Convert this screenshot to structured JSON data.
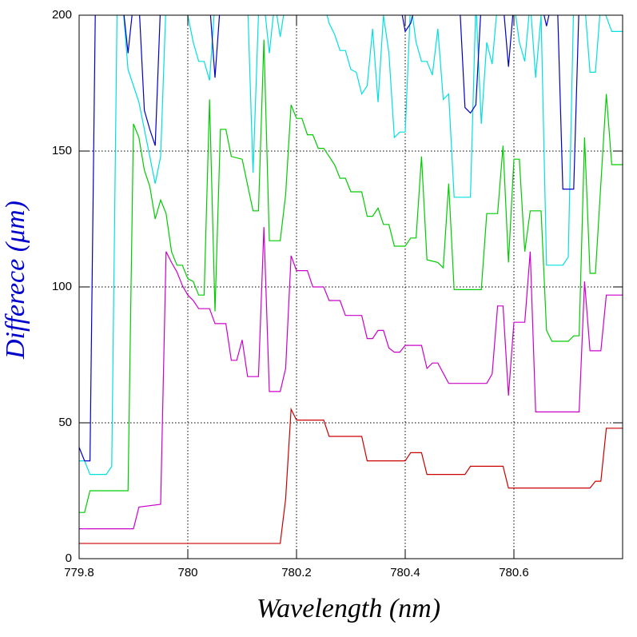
{
  "chart_data": {
    "type": "line",
    "xlabel": "Wavelength (nm)",
    "ylabel": "Differece (μm)",
    "xlim": [
      779.8,
      780.8
    ],
    "xticks": [
      779.8,
      780,
      780.2,
      780.4,
      780.6
    ],
    "ylim": [
      0,
      200
    ],
    "yticks": [
      0,
      50,
      100,
      150,
      200
    ],
    "grid": true,
    "series": [
      {
        "color": "#cc0000",
        "x": [
          779.8,
          780.17,
          780.18,
          780.19,
          780.2,
          780.25,
          780.26,
          780.32,
          780.33,
          780.4,
          780.41,
          780.43,
          780.44,
          780.51,
          780.52,
          780.58,
          780.59,
          780.74,
          780.75,
          780.76,
          780.77,
          780.8
        ],
        "values": [
          5.6,
          5.6,
          22,
          55,
          51,
          51,
          45,
          45,
          36,
          36,
          39,
          39,
          31,
          31,
          34,
          34,
          26,
          26,
          28.5,
          28.5,
          48,
          48
        ]
      },
      {
        "color": "#cc00cc",
        "x": [
          779.8,
          779.9,
          779.91,
          779.95,
          779.96,
          779.97,
          779.98,
          779.99,
          780.0,
          780.01,
          780.02,
          780.04,
          780.05,
          780.07,
          780.08,
          780.09,
          780.1,
          780.11,
          780.13,
          780.14,
          780.15,
          780.17,
          780.18,
          780.19,
          780.2,
          780.22,
          780.23,
          780.25,
          780.26,
          780.28,
          780.29,
          780.32,
          780.33,
          780.34,
          780.35,
          780.36,
          780.37,
          780.38,
          780.39,
          780.4,
          780.43,
          780.44,
          780.45,
          780.46,
          780.48,
          780.55,
          780.56,
          780.57,
          780.58,
          780.59,
          780.6,
          780.62,
          780.63,
          780.64,
          780.72,
          780.73,
          780.74,
          780.76,
          780.77,
          780.8
        ],
        "values": [
          11,
          11,
          19,
          20,
          113,
          109,
          105.5,
          100.5,
          97,
          95,
          92,
          92,
          86.5,
          86.5,
          73,
          73,
          80.5,
          67,
          67,
          122,
          61.5,
          61.5,
          70,
          111.5,
          106,
          106,
          100,
          100,
          95,
          95,
          89.5,
          89.5,
          81,
          81,
          84,
          84,
          77.5,
          76,
          76,
          78.5,
          78.5,
          70,
          72,
          72,
          64.5,
          64.5,
          68,
          93,
          93,
          60,
          87,
          87,
          113,
          54,
          54,
          102,
          76.5,
          76.5,
          97,
          97
        ]
      },
      {
        "color": "#00cc00",
        "x": [
          779.8,
          779.81,
          779.82,
          779.89,
          779.9,
          779.91,
          779.92,
          779.93,
          779.94,
          779.95,
          779.96,
          779.97,
          779.98,
          779.99,
          780.0,
          780.01,
          780.02,
          780.03,
          780.04,
          780.05,
          780.06,
          780.07,
          780.08,
          780.1,
          780.12,
          780.13,
          780.14,
          780.15,
          780.17,
          780.18,
          780.19,
          780.2,
          780.21,
          780.22,
          780.23,
          780.24,
          780.25,
          780.27,
          780.28,
          780.29,
          780.3,
          780.32,
          780.33,
          780.34,
          780.35,
          780.36,
          780.37,
          780.38,
          780.4,
          780.41,
          780.42,
          780.43,
          780.44,
          780.46,
          780.47,
          780.48,
          780.49,
          780.54,
          780.55,
          780.57,
          780.58,
          780.59,
          780.6,
          780.61,
          780.62,
          780.63,
          780.65,
          780.66,
          780.67,
          780.7,
          780.71,
          780.72,
          780.73,
          780.74,
          780.75,
          780.77,
          780.78,
          780.8
        ],
        "values": [
          17,
          17,
          25,
          25,
          160,
          155,
          143,
          137,
          125,
          132,
          127,
          113,
          108,
          108,
          103,
          102,
          97,
          97,
          169,
          91,
          158,
          158,
          148,
          147,
          128,
          128,
          191,
          117,
          117,
          134,
          167,
          162,
          162,
          156,
          156,
          151,
          151,
          145,
          140,
          140,
          135,
          135,
          126,
          126,
          129,
          123,
          123,
          115,
          115,
          118,
          118,
          148,
          110,
          109,
          107,
          138,
          99,
          99,
          127,
          127,
          152,
          109,
          147,
          147,
          113,
          128,
          128,
          84,
          80,
          80,
          82,
          82,
          155,
          105,
          105,
          171,
          145,
          145
        ]
      },
      {
        "color": "#00e0e0",
        "x": [
          779.8,
          779.81,
          779.82,
          779.85,
          779.86,
          779.87,
          779.88,
          779.89,
          779.91,
          779.93,
          779.94,
          779.95,
          779.96,
          780.0,
          780.01,
          780.02,
          780.03,
          780.04,
          780.05,
          780.11,
          780.12,
          780.13,
          780.14,
          780.15,
          780.16,
          780.17,
          780.18,
          780.25,
          780.26,
          780.27,
          780.28,
          780.29,
          780.3,
          780.31,
          780.32,
          780.33,
          780.34,
          780.35,
          780.36,
          780.37,
          780.38,
          780.39,
          780.4,
          780.41,
          780.42,
          780.43,
          780.44,
          780.45,
          780.46,
          780.47,
          780.48,
          780.49,
          780.52,
          780.53,
          780.54,
          780.55,
          780.56,
          780.57,
          780.6,
          780.61,
          780.62,
          780.63,
          780.64,
          780.65,
          780.66,
          780.69,
          780.7,
          780.71,
          780.73,
          780.74,
          780.75,
          780.76,
          780.78,
          780.8
        ],
        "values": [
          36,
          36,
          31,
          31,
          34,
          205,
          205,
          180,
          168,
          148,
          138,
          148,
          205,
          200,
          190,
          183,
          183,
          176,
          205,
          205,
          142,
          200,
          205,
          186,
          205,
          192,
          205,
          205,
          197,
          193,
          187,
          187,
          180,
          179,
          171,
          174,
          195,
          168,
          200,
          186,
          155,
          157,
          157,
          205,
          190,
          183,
          183,
          178,
          195,
          169,
          171,
          133,
          133,
          205,
          160,
          190,
          182,
          205,
          205,
          190,
          183,
          205,
          177,
          200,
          108,
          108,
          111,
          205,
          205,
          179,
          179,
          205,
          194,
          194
        ]
      },
      {
        "color": "#0000cc",
        "x": [
          779.8,
          779.81,
          779.82,
          779.83,
          779.88,
          779.89,
          779.9,
          779.91,
          779.92,
          779.93,
          779.94,
          779.95,
          780.04,
          780.05,
          780.06,
          780.39,
          780.4,
          780.41,
          780.42,
          780.5,
          780.51,
          780.52,
          780.53,
          780.54,
          780.58,
          780.59,
          780.6,
          780.65,
          780.66,
          780.67,
          780.68,
          780.69,
          780.71,
          780.72,
          780.8
        ],
        "values": [
          41,
          36,
          36,
          205,
          205,
          186,
          205,
          205,
          165,
          158,
          152,
          205,
          205,
          177,
          205,
          205,
          194,
          197,
          205,
          205,
          166,
          164,
          167,
          205,
          205,
          181,
          205,
          205,
          196,
          205,
          205,
          136,
          136,
          205,
          205
        ]
      }
    ]
  }
}
